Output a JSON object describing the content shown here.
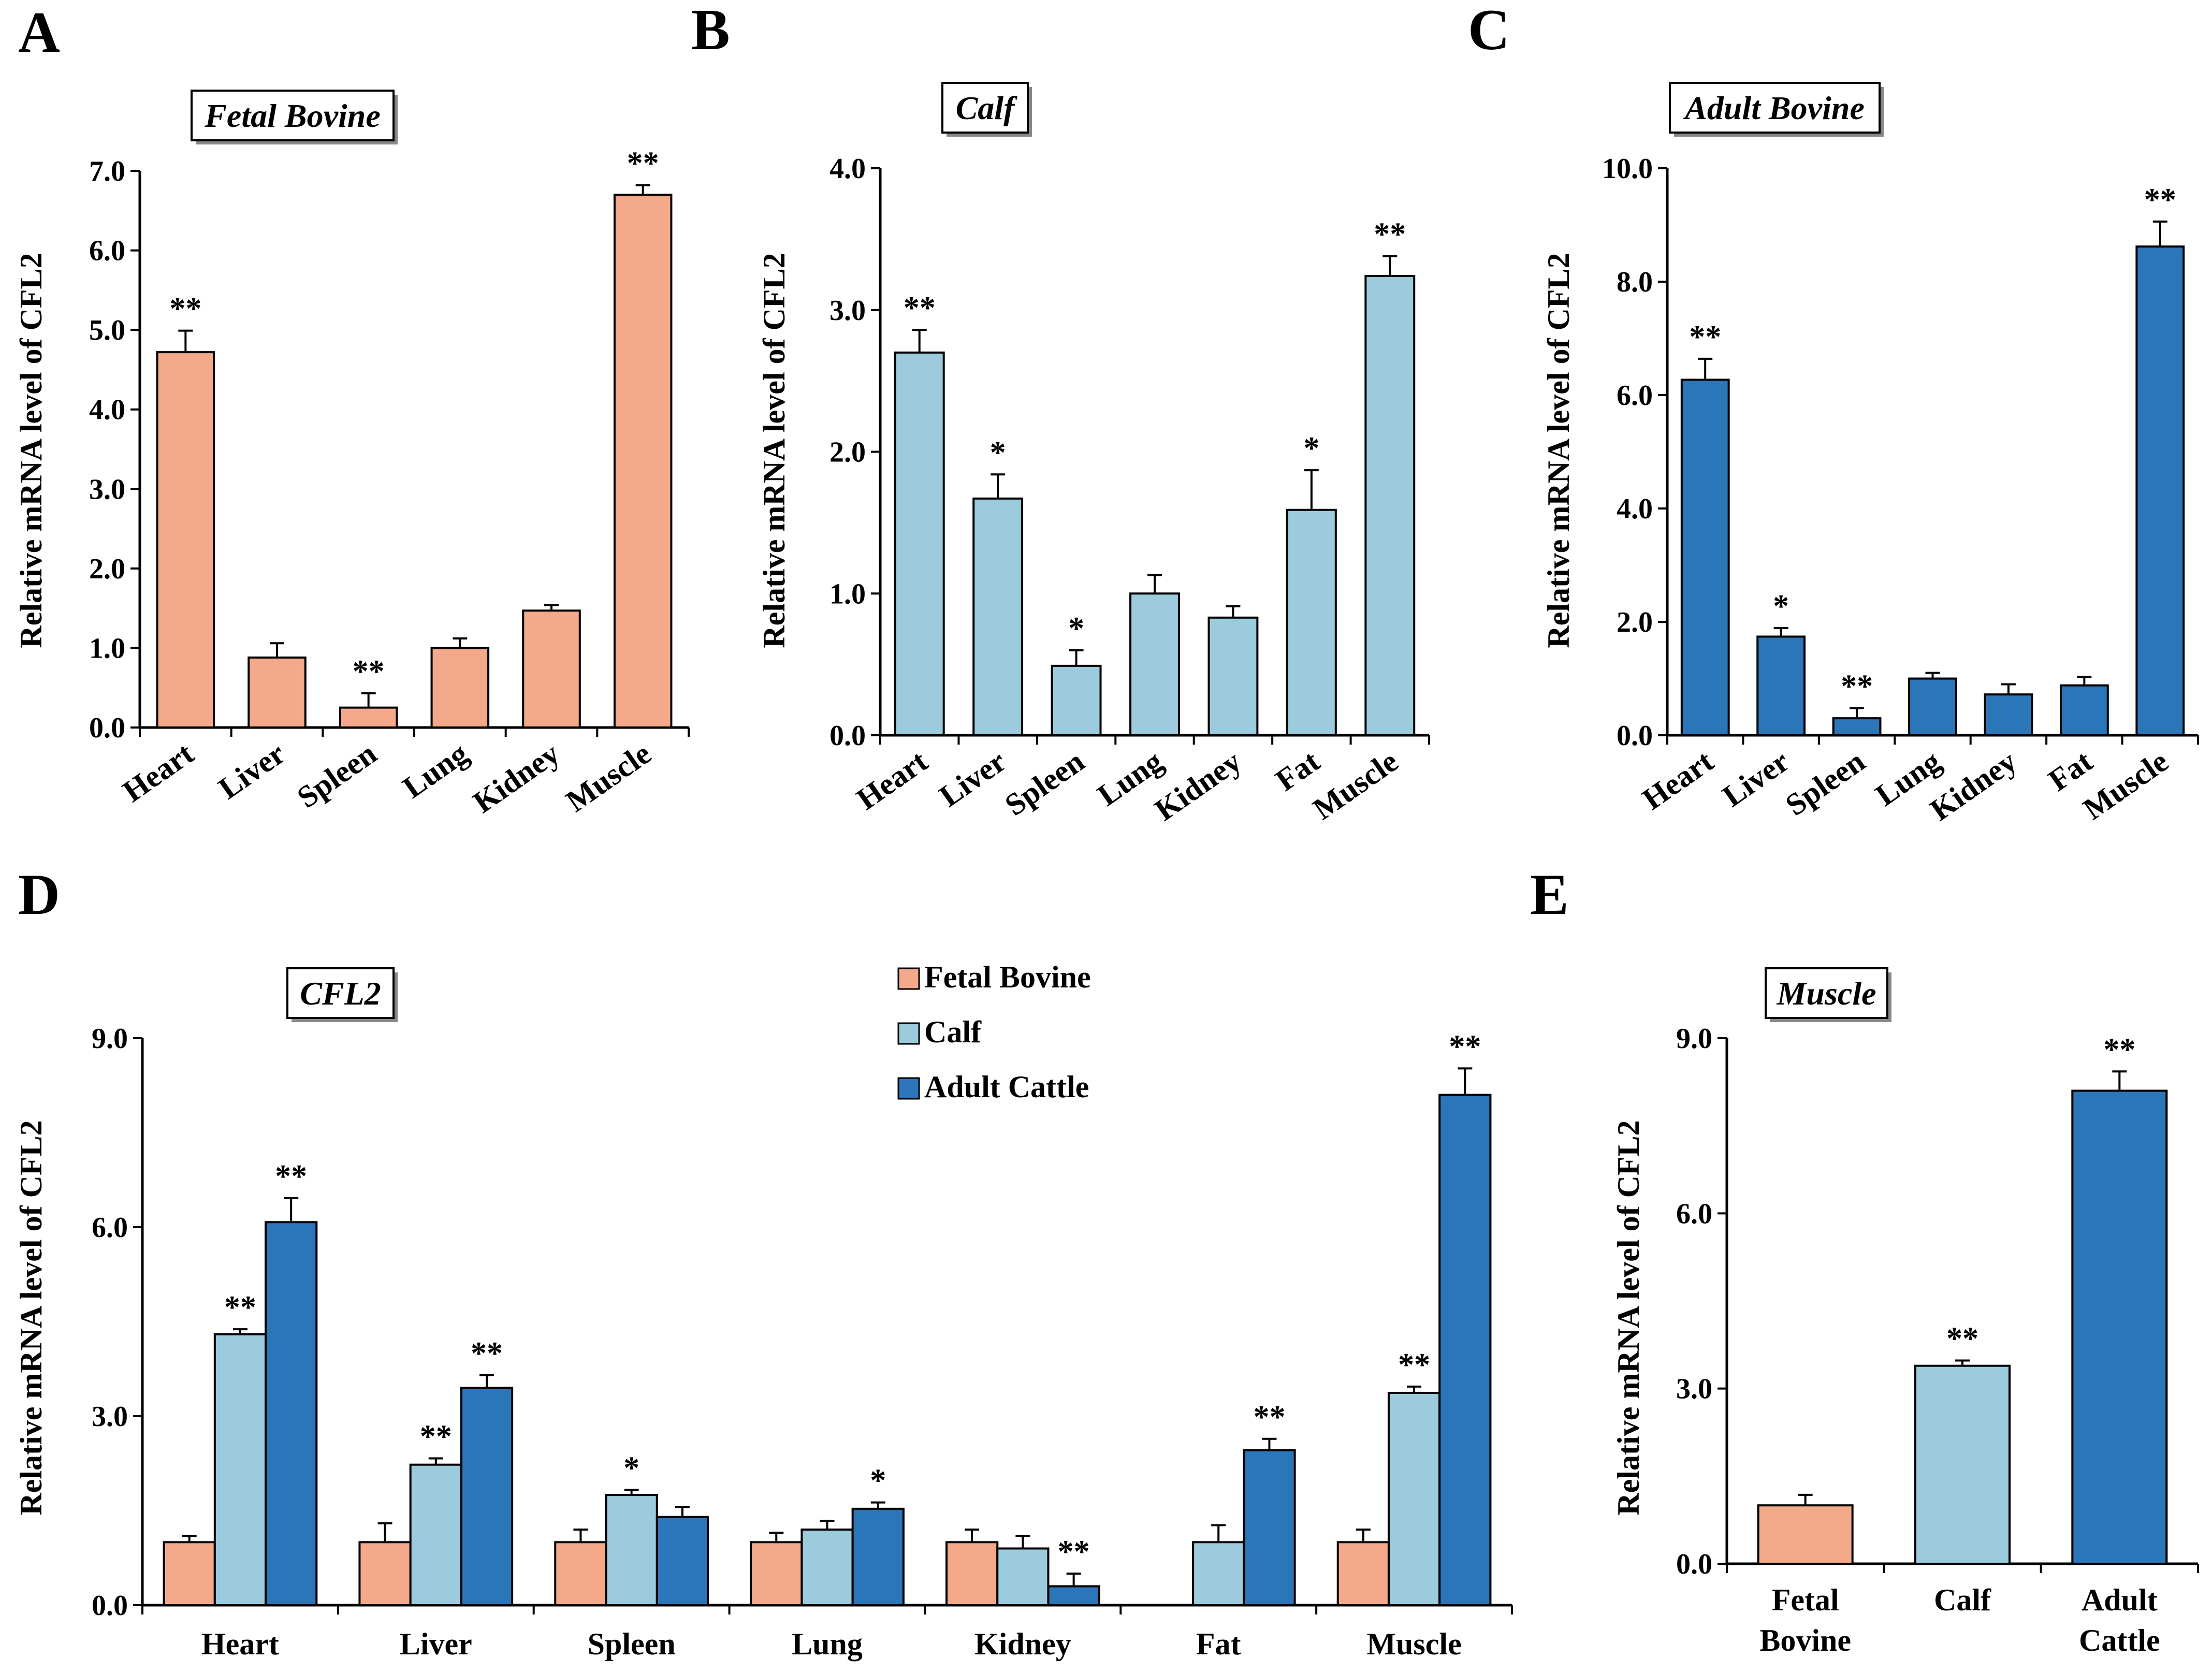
{
  "colors": {
    "fetal": "#f5a98b",
    "calf": "#9bcbdc",
    "adult": "#2b76b8",
    "axis": "#000000"
  },
  "chart_data": [
    {
      "panel": "A",
      "type": "bar",
      "title": "Fetal Bovine",
      "ylabel": "Relative mRNA level of CFL2",
      "ylim": [
        0,
        7
      ],
      "ticks": [
        "0.0",
        "1.0",
        "2.0",
        "3.0",
        "4.0",
        "5.0",
        "6.0",
        "7.0"
      ],
      "categories": [
        "Heart",
        "Liver",
        "Spleen",
        "Lung",
        "Kidney",
        "Muscle"
      ],
      "series": [
        {
          "name": "Fetal Bovine",
          "color": "fetal",
          "values": [
            4.72,
            0.88,
            0.25,
            1.0,
            1.47,
            6.7
          ],
          "errors": [
            0.27,
            0.18,
            0.18,
            0.12,
            0.07,
            0.12
          ],
          "sig": [
            "**",
            "",
            "**",
            "",
            "",
            "**"
          ]
        }
      ]
    },
    {
      "panel": "B",
      "type": "bar",
      "title": "Calf",
      "ylabel": "Relative mRNA level of CFL2",
      "ylim": [
        0,
        4
      ],
      "ticks": [
        "0.0",
        "1.0",
        "2.0",
        "3.0",
        "4.0"
      ],
      "categories": [
        "Heart",
        "Liver",
        "Spleen",
        "Lung",
        "Kidney",
        "Fat",
        "Muscle"
      ],
      "series": [
        {
          "name": "Calf",
          "color": "calf",
          "values": [
            2.7,
            1.67,
            0.49,
            1.0,
            0.83,
            1.59,
            3.24
          ],
          "errors": [
            0.16,
            0.17,
            0.11,
            0.13,
            0.08,
            0.28,
            0.14
          ],
          "sig": [
            "**",
            "*",
            "*",
            "",
            "",
            "*",
            "**"
          ]
        }
      ]
    },
    {
      "panel": "C",
      "type": "bar",
      "title": "Adult Bovine",
      "ylabel": "Relative mRNA level of CFL2",
      "ylim": [
        0,
        10
      ],
      "ticks": [
        "0.0",
        "2.0",
        "4.0",
        "6.0",
        "8.0",
        "10.0"
      ],
      "categories": [
        "Heart",
        "Liver",
        "Spleen",
        "Lung",
        "Kidney",
        "Fat",
        "Muscle"
      ],
      "series": [
        {
          "name": "Adult Bovine",
          "color": "adult",
          "values": [
            6.27,
            1.74,
            0.3,
            1.0,
            0.72,
            0.88,
            8.62
          ],
          "errors": [
            0.37,
            0.15,
            0.18,
            0.1,
            0.18,
            0.15,
            0.44
          ],
          "sig": [
            "**",
            "*",
            "**",
            "",
            "",
            "",
            "**"
          ]
        }
      ]
    },
    {
      "panel": "D",
      "type": "bar",
      "title": "CFL2",
      "ylabel": "Relative mRNA level of CFL2",
      "ylim": [
        0,
        9
      ],
      "ticks": [
        "0.0",
        "3.0",
        "6.0",
        "9.0"
      ],
      "categories": [
        "Heart",
        "Liver",
        "Spleen",
        "Lung",
        "Kidney",
        "Fat",
        "Muscle"
      ],
      "legend": [
        "Fetal Bovine",
        "Calf",
        "Adult Cattle"
      ],
      "series": [
        {
          "name": "Fetal Bovine",
          "color": "fetal",
          "values": [
            1.0,
            1.0,
            1.0,
            1.0,
            1.0,
            null,
            1.0
          ],
          "errors": [
            0.1,
            0.3,
            0.2,
            0.15,
            0.2,
            0,
            0.2
          ],
          "sig": [
            "",
            "",
            "",
            "",
            "",
            "",
            ""
          ]
        },
        {
          "name": "Calf",
          "color": "calf",
          "values": [
            4.3,
            2.23,
            1.75,
            1.2,
            0.9,
            1.0,
            3.37
          ],
          "errors": [
            0.08,
            0.1,
            0.08,
            0.14,
            0.2,
            0.27,
            0.1
          ],
          "sig": [
            "**",
            "**",
            "*",
            "",
            "",
            "",
            "**"
          ]
        },
        {
          "name": "Adult Cattle",
          "color": "adult",
          "values": [
            6.08,
            3.45,
            1.4,
            1.53,
            0.3,
            2.46,
            8.1
          ],
          "errors": [
            0.38,
            0.2,
            0.16,
            0.1,
            0.2,
            0.18,
            0.42
          ],
          "sig": [
            "**",
            "**",
            "",
            "*",
            "**",
            "**",
            "**"
          ]
        }
      ]
    },
    {
      "panel": "E",
      "type": "bar",
      "title": "Muscle",
      "ylabel": "Relative mRNA level of CFL2",
      "ylim": [
        0,
        9
      ],
      "ticks": [
        "0.0",
        "3.0",
        "6.0",
        "9.0"
      ],
      "categories": [
        [
          "Fetal",
          "Bovine"
        ],
        [
          "Calf"
        ],
        [
          "Adult",
          "Cattle"
        ]
      ],
      "series": [
        {
          "name": "Muscle",
          "colors": [
            "fetal",
            "calf",
            "adult"
          ],
          "values": [
            1.0,
            3.39,
            8.1
          ],
          "errors": [
            0.18,
            0.09,
            0.33
          ],
          "sig": [
            "",
            "**",
            "**"
          ]
        }
      ]
    }
  ]
}
